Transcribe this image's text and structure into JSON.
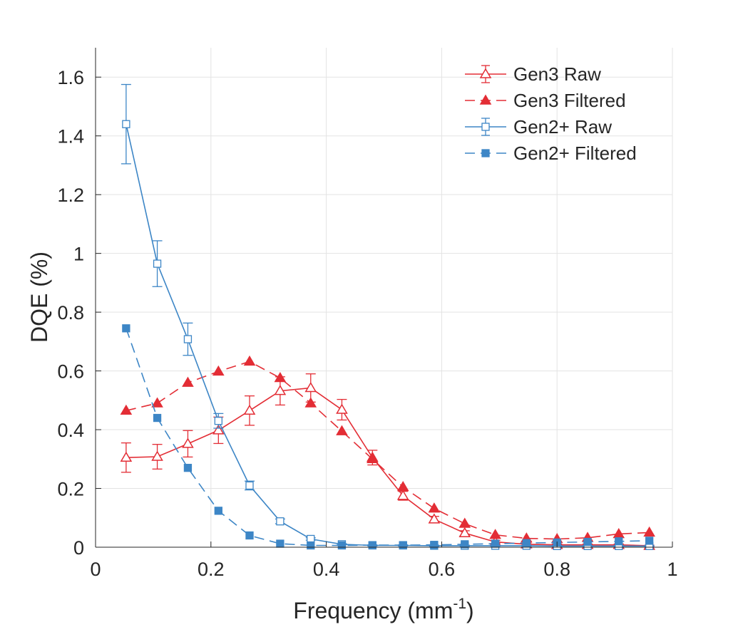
{
  "chart_data": {
    "type": "line",
    "title": "",
    "xlabel": "Frequency (mm",
    "xlabel_sup": "-1",
    "xlabel_end": ")",
    "ylabel": "DQE (%)",
    "xlim": [
      0,
      1
    ],
    "ylim": [
      0,
      1.7
    ],
    "grid": true,
    "legend_position": "top-right",
    "x_ticks": [
      {
        "value": 0,
        "label": "0"
      },
      {
        "value": 0.2,
        "label": "0.2"
      },
      {
        "value": 0.4,
        "label": "0.4"
      },
      {
        "value": 0.6,
        "label": "0.6"
      },
      {
        "value": 0.8,
        "label": "0.8"
      },
      {
        "value": 1,
        "label": "1"
      }
    ],
    "y_ticks": [
      {
        "value": 0,
        "label": "0"
      },
      {
        "value": 0.2,
        "label": "0.2"
      },
      {
        "value": 0.4,
        "label": "0.4"
      },
      {
        "value": 0.6,
        "label": "0.6"
      },
      {
        "value": 0.8,
        "label": "0.8"
      },
      {
        "value": 1,
        "label": "1"
      },
      {
        "value": 1.2,
        "label": "1.2"
      },
      {
        "value": 1.4,
        "label": "1.4"
      },
      {
        "value": 1.6,
        "label": "1.6"
      }
    ],
    "x": [
      0.053,
      0.107,
      0.16,
      0.213,
      0.267,
      0.32,
      0.373,
      0.427,
      0.48,
      0.533,
      0.587,
      0.64,
      0.693,
      0.747,
      0.8,
      0.853,
      0.907,
      0.96
    ],
    "series": [
      {
        "name": "Gen3 Raw",
        "color": "#e32d35",
        "marker": "triangle-open",
        "line": "solid",
        "values": [
          0.305,
          0.308,
          0.352,
          0.398,
          0.465,
          0.532,
          0.542,
          0.468,
          0.305,
          0.175,
          0.095,
          0.048,
          0.018,
          0.01,
          0.008,
          0.008,
          0.008,
          0.005
        ],
        "errors": [
          0.05,
          0.042,
          0.045,
          0.045,
          0.05,
          0.048,
          0.048,
          0.035,
          0.025,
          0.015,
          0.01,
          0.008,
          0.005,
          0.004,
          0.003,
          0.003,
          0.003,
          0.002
        ]
      },
      {
        "name": "Gen3 Filtered",
        "color": "#e32d35",
        "marker": "triangle-filled",
        "line": "dashed",
        "values": [
          0.465,
          0.49,
          0.56,
          0.598,
          0.632,
          0.576,
          0.49,
          0.395,
          0.3,
          0.205,
          0.132,
          0.08,
          0.042,
          0.03,
          0.028,
          0.032,
          0.045,
          0.05
        ]
      },
      {
        "name": "Gen2+ Raw",
        "color": "#3d86c6",
        "marker": "square-open",
        "line": "solid",
        "values": [
          1.44,
          0.965,
          0.708,
          0.43,
          0.21,
          0.088,
          0.028,
          0.01,
          0.006,
          0.006,
          0.005,
          0.005,
          0.005,
          0.005,
          0.004,
          0.004,
          0.004,
          0.004
        ],
        "errors": [
          0.135,
          0.078,
          0.055,
          0.025,
          0.015,
          0.008,
          0.004,
          0.002,
          0.002,
          0.002,
          0.002,
          0.002,
          0.002,
          0.002,
          0.002,
          0.002,
          0.002,
          0.002
        ]
      },
      {
        "name": "Gen2+ Filtered",
        "color": "#3d86c6",
        "marker": "square-filled",
        "line": "dashed",
        "values": [
          0.745,
          0.44,
          0.27,
          0.124,
          0.04,
          0.012,
          0.006,
          0.006,
          0.007,
          0.007,
          0.008,
          0.01,
          0.012,
          0.014,
          0.016,
          0.018,
          0.02,
          0.022
        ]
      }
    ]
  }
}
